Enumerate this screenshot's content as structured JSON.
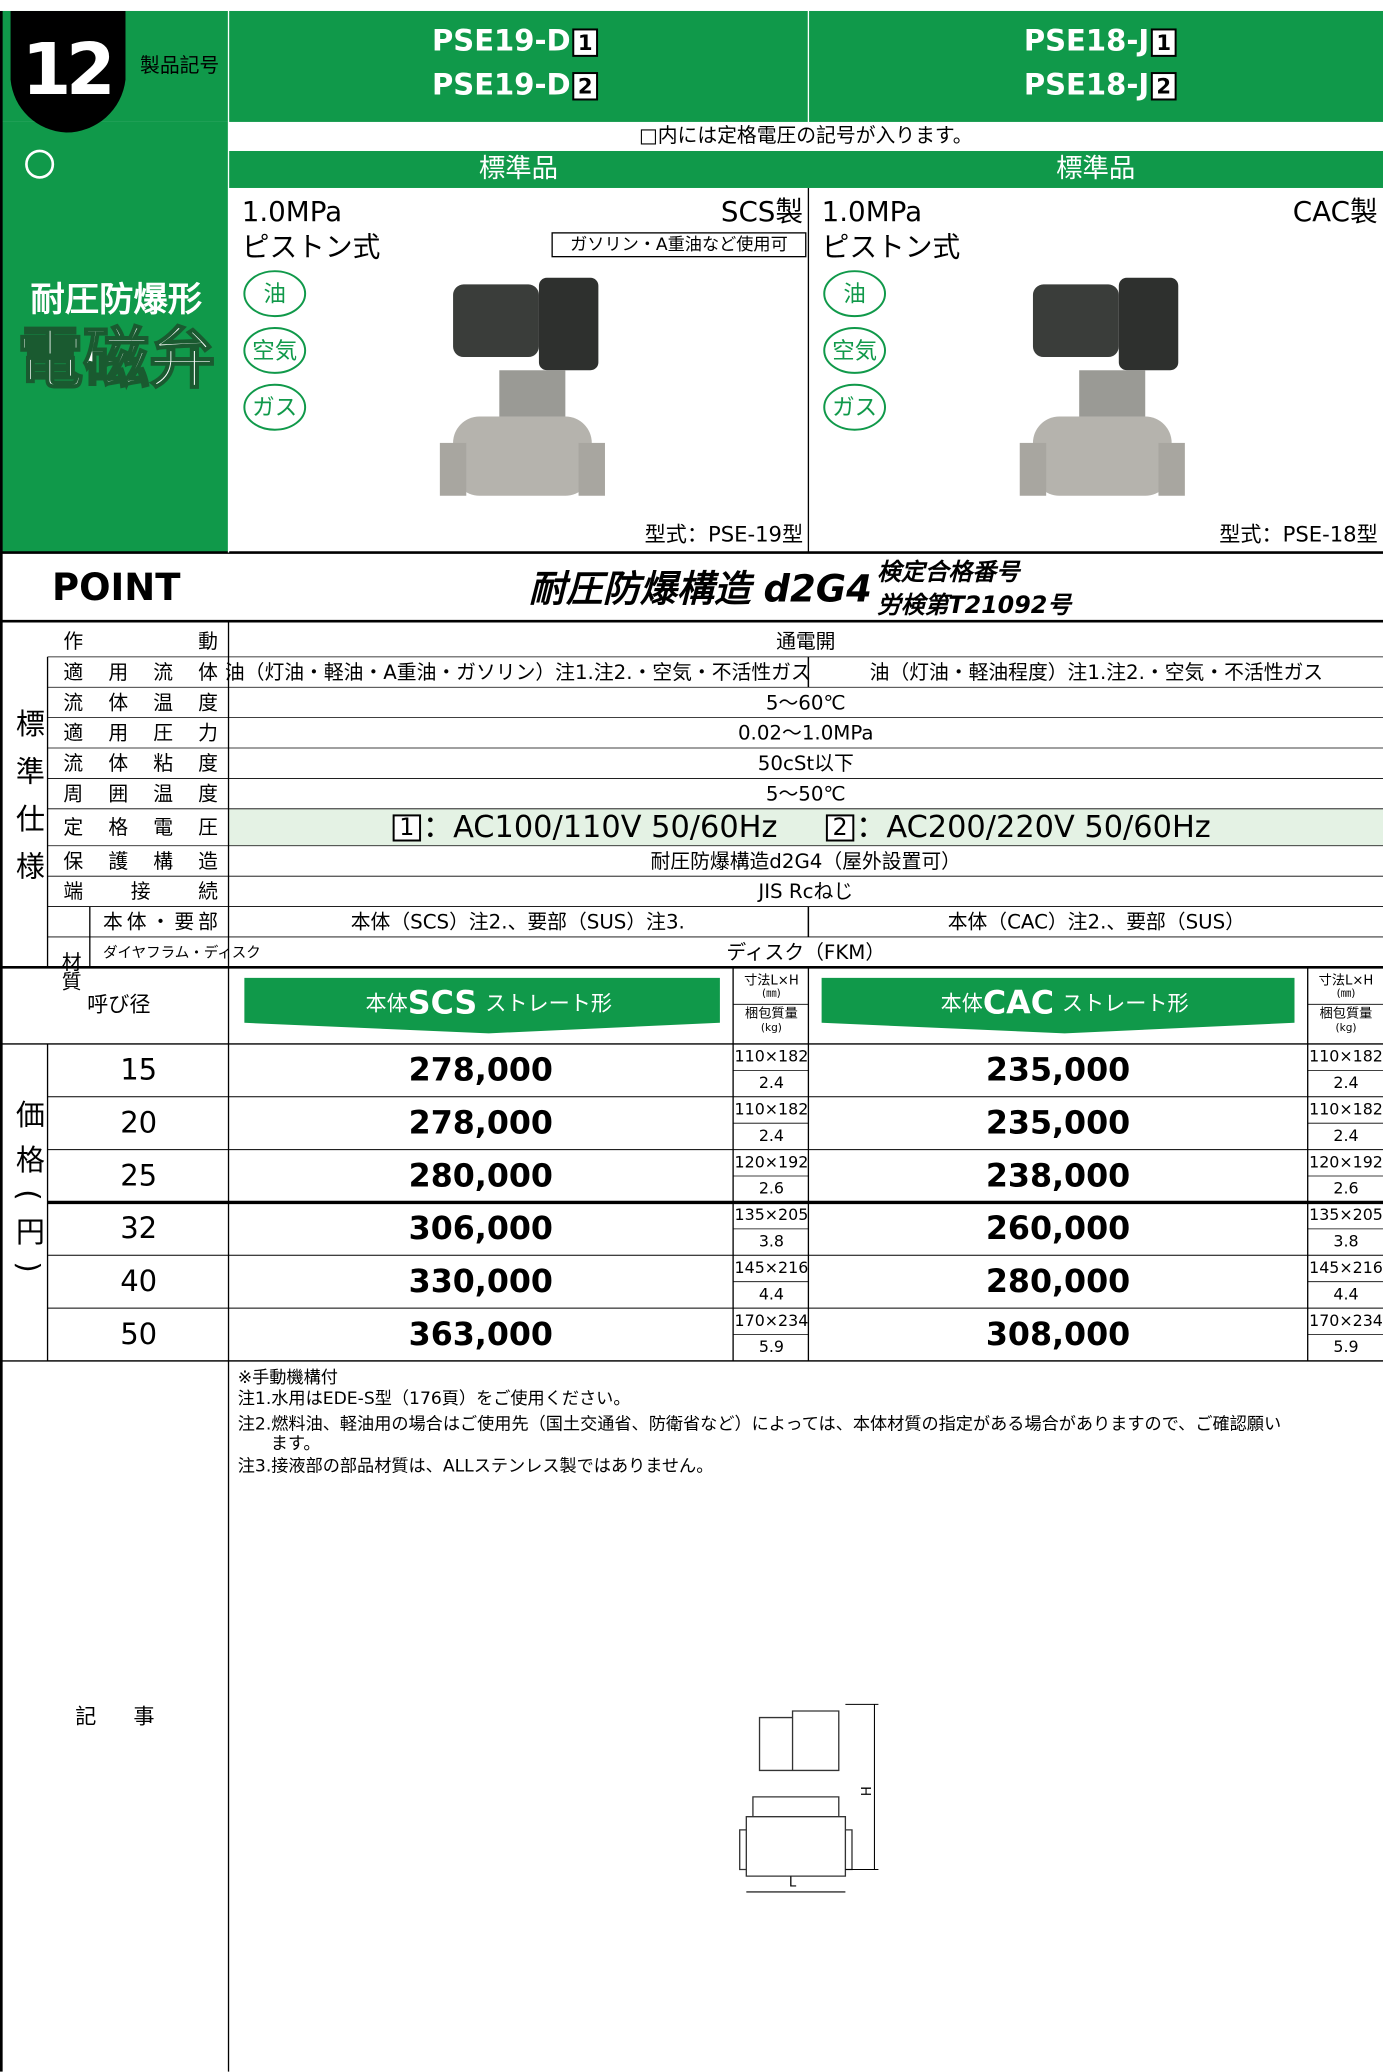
{
  "header": {
    "number": "12",
    "label": "製品記号",
    "columns": [
      {
        "models": [
          {
            "name": "PSE19-D",
            "box": "1"
          },
          {
            "name": "PSE19-D",
            "box": "2"
          }
        ]
      },
      {
        "models": [
          {
            "name": "PSE18-J",
            "box": "1"
          },
          {
            "name": "PSE18-J",
            "box": "2"
          }
        ]
      }
    ]
  },
  "note": "□内には定格電圧の記号が入ります。",
  "side": {
    "category": "耐圧防爆形",
    "product": "電磁弁"
  },
  "products": [
    {
      "standard": "標準品",
      "pressure": "1.0MPa",
      "material": "SCS製",
      "kind": "ピストン式",
      "tag": "ガソリン・A重油など使用可",
      "media": [
        "油",
        "空気",
        "ガス"
      ],
      "model": "型式：PSE-19型"
    },
    {
      "standard": "標準品",
      "pressure": "1.0MPa",
      "material": "CAC製",
      "kind": "ピストン式",
      "media": [
        "油",
        "空気",
        "ガス"
      ],
      "model": "型式：PSE-18型"
    }
  ],
  "point": {
    "label": "POINT",
    "text": "耐圧防爆構造 d2G4",
    "cert": [
      "検定合格番号",
      "労検第T21092号"
    ]
  },
  "specs": {
    "group": "標準仕様",
    "material_label": "材質",
    "rows": [
      {
        "label": "作動",
        "value": "通電開"
      },
      {
        "label": "適用流体",
        "values": [
          "油（灯油・軽油・A重油・ガソリン）注1.注2.・空気・不活性ガス",
          "油（灯油・軽油程度）注1.注2.・空気・不活性ガス"
        ]
      },
      {
        "label": "流体温度",
        "value": "5〜60℃"
      },
      {
        "label": "適用圧力",
        "value": "0.02〜1.0MPa"
      },
      {
        "label": "流体粘度",
        "value": "50cSt以下"
      },
      {
        "label": "周囲温度",
        "value": "5〜50℃"
      },
      {
        "label": "定格電圧",
        "voltage": [
          {
            "box": "1",
            "text": "：AC100/110V 50/60Hz"
          },
          {
            "box": "2",
            "text": "：AC200/220V 50/60Hz"
          }
        ]
      },
      {
        "label": "保護構造",
        "value": "耐圧防爆構造d2G4（屋外設置可）"
      },
      {
        "label": "端接続",
        "value": "JIS Rcねじ"
      },
      {
        "label": "本体・要部",
        "values": [
          "本体（SCS）注2.、要部（SUS）注3.",
          "本体（CAC）注2.、要部（SUS）"
        ]
      },
      {
        "label": "ダイヤフラム・ディスク",
        "value": "ディスク（FKM）"
      }
    ]
  },
  "prices": {
    "group": "価格(円)",
    "size_header": "呼び径",
    "bodies": [
      {
        "prefix": "本体",
        "material": "SCS",
        "suffix": "ストレート形"
      },
      {
        "prefix": "本体",
        "material": "CAC",
        "suffix": "ストレート形"
      }
    ],
    "dim_header": [
      "寸法L×H",
      "(㎜)",
      "梱包質量",
      "(kg)"
    ],
    "rows": [
      {
        "size": "15",
        "items": [
          {
            "price": "278,000",
            "dim": "110×182",
            "weight": "2.4"
          },
          {
            "price": "235,000",
            "dim": "110×182",
            "weight": "2.4"
          }
        ]
      },
      {
        "size": "20",
        "items": [
          {
            "price": "278,000",
            "dim": "110×182",
            "weight": "2.4"
          },
          {
            "price": "235,000",
            "dim": "110×182",
            "weight": "2.4"
          }
        ]
      },
      {
        "size": "25",
        "items": [
          {
            "price": "280,000",
            "dim": "120×192",
            "weight": "2.6"
          },
          {
            "price": "238,000",
            "dim": "120×192",
            "weight": "2.6"
          }
        ]
      },
      {
        "size": "32",
        "items": [
          {
            "price": "306,000",
            "dim": "135×205",
            "weight": "3.8"
          },
          {
            "price": "260,000",
            "dim": "135×205",
            "weight": "3.8"
          }
        ]
      },
      {
        "size": "40",
        "items": [
          {
            "price": "330,000",
            "dim": "145×216",
            "weight": "4.4"
          },
          {
            "price": "280,000",
            "dim": "145×216",
            "weight": "4.4"
          }
        ]
      },
      {
        "size": "50",
        "items": [
          {
            "price": "363,000",
            "dim": "170×234",
            "weight": "5.9"
          },
          {
            "price": "308,000",
            "dim": "170×234",
            "weight": "5.9"
          }
        ]
      }
    ]
  },
  "remarks": {
    "label": "記事",
    "notes": [
      "※手動機構付",
      "注1.水用はEDE-S型（176頁）をご使用ください。",
      "注2.燃料油、軽油用の場合はご使用先（国土交通省、防衛省など）によっては、本体材質の指定がある場合がありますので、ご確認願い",
      "ます。",
      "注3.接液部の部品材質は、ALLステンレス製ではありません。"
    ],
    "diagram": {
      "height": "H",
      "length": "L"
    }
  }
}
